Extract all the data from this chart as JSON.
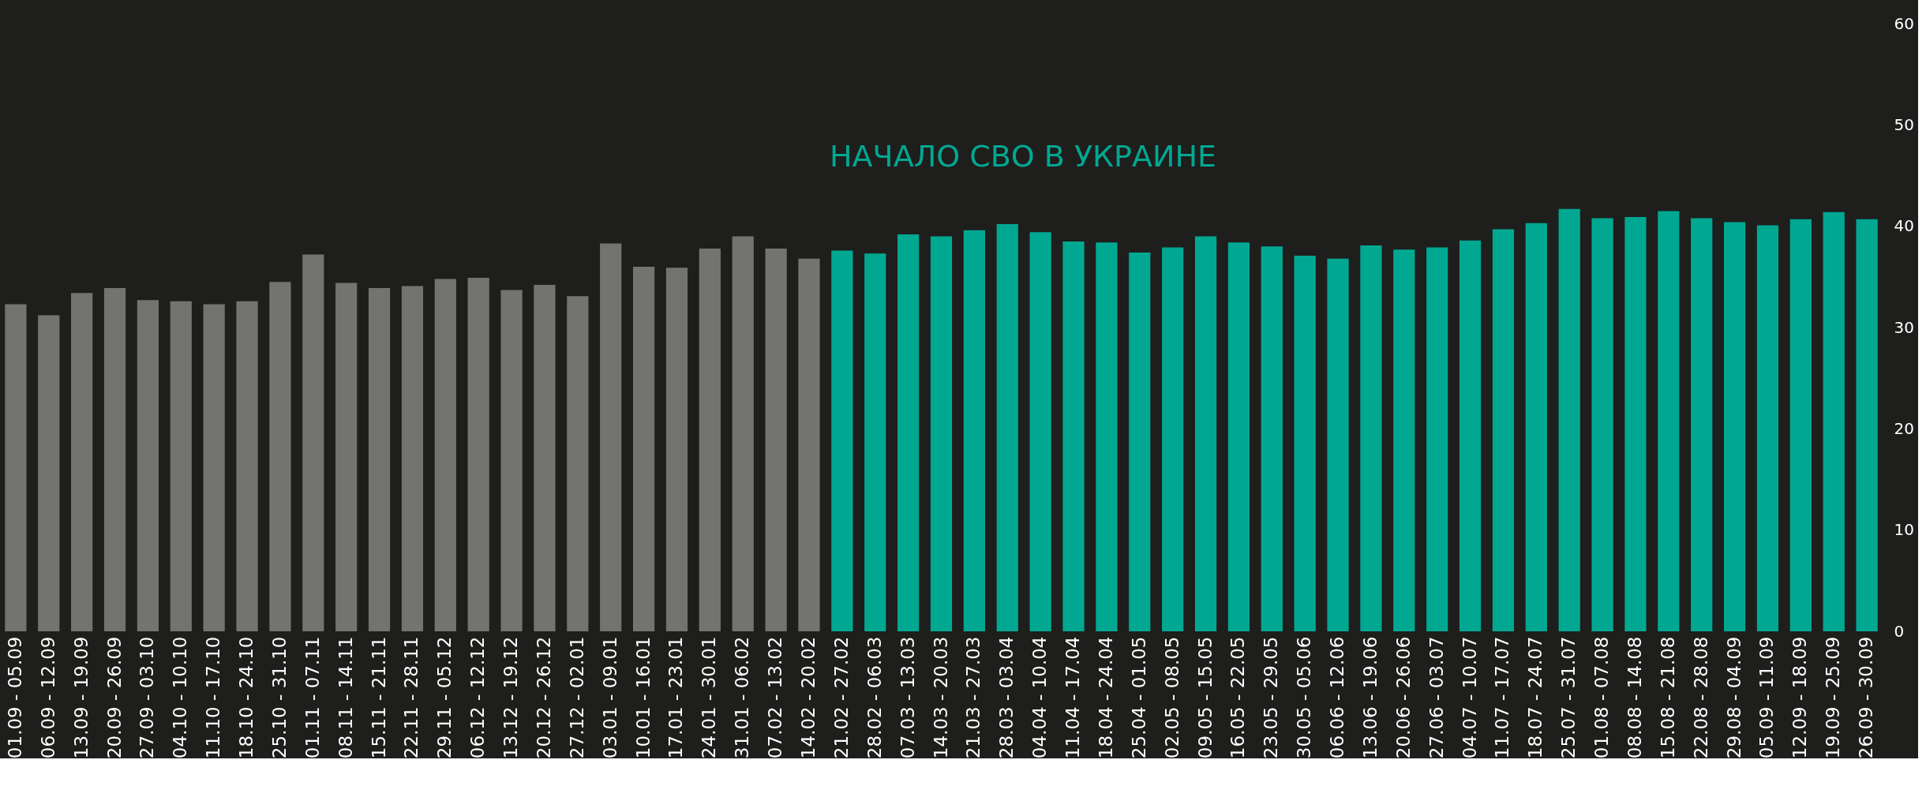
{
  "chart_data": {
    "type": "bar",
    "categories": [
      "01.09 - 05.09",
      "06.09 - 12.09",
      "13.09 - 19.09",
      "20.09 - 26.09",
      "27.09 - 03.10",
      "04.10 - 10.10",
      "11.10 - 17.10",
      "18.10 - 24.10",
      "25.10 - 31.10",
      "01.11 - 07.11",
      "08.11 - 14.11",
      "15.11 - 21.11",
      "22.11 - 28.11",
      "29.11 - 05.12",
      "06.12 - 12.12",
      "13.12 - 19.12",
      "20.12 - 26.12",
      "27.12 - 02.01",
      "03.01 - 09.01",
      "10.01 - 16.01",
      "17.01 - 23.01",
      "24.01 - 30.01",
      "31.01 - 06.02",
      "07.02 - 13.02",
      "14.02 - 20.02",
      "21.02 - 27.02",
      "28.02 - 06.03",
      "07.03 - 13.03",
      "14.03 - 20.03",
      "21.03 - 27.03",
      "28.03 - 03.04",
      "04.04 - 10.04",
      "11.04 - 17.04",
      "18.04 - 24.04",
      "25.04 - 01.05",
      "02.05 - 08.05",
      "09.05 - 15.05",
      "16.05 - 22.05",
      "23.05 - 29.05",
      "30.05 - 05.06",
      "06.06 - 12.06",
      "13.06 - 19.06",
      "20.06 - 26.06",
      "27.06 - 03.07",
      "04.07 - 10.07",
      "11.07 - 17.07",
      "18.07 - 24.07",
      "25.07 - 31.07",
      "01.08 - 07.08",
      "08.08 - 14.08",
      "15.08 - 21.08",
      "22.08 - 28.08",
      "29.08 - 04.09",
      "05.09 - 11.09",
      "12.09 - 18.09",
      "19.09 - 25.09",
      "26.09 - 30.09"
    ],
    "values": [
      32.3,
      31.2,
      33.4,
      33.9,
      32.7,
      32.6,
      32.3,
      32.6,
      34.5,
      37.2,
      34.4,
      33.9,
      34.1,
      34.8,
      34.9,
      33.7,
      34.2,
      33.1,
      38.3,
      36.0,
      35.9,
      37.8,
      39.0,
      37.8,
      36.8,
      37.6,
      37.3,
      39.2,
      39.0,
      39.6,
      40.2,
      39.4,
      38.5,
      38.4,
      37.4,
      37.9,
      39.0,
      38.4,
      38.0,
      37.1,
      36.8,
      38.1,
      37.7,
      37.9,
      38.6,
      39.7,
      40.3,
      41.7,
      40.8,
      40.9,
      41.5,
      40.8,
      40.4,
      40.1,
      40.7,
      41.4,
      40.7
    ],
    "colors": [
      "#737371",
      "#737371",
      "#737371",
      "#737371",
      "#737371",
      "#737371",
      "#737371",
      "#737371",
      "#737371",
      "#737371",
      "#737371",
      "#737371",
      "#737371",
      "#737371",
      "#737371",
      "#737371",
      "#737371",
      "#737371",
      "#737371",
      "#737371",
      "#737371",
      "#737371",
      "#737371",
      "#737371",
      "#737371",
      "#00a892",
      "#00a892",
      "#00a892",
      "#00a892",
      "#00a892",
      "#00a892",
      "#00a892",
      "#00a892",
      "#00a892",
      "#00a892",
      "#00a892",
      "#00a892",
      "#00a892",
      "#00a892",
      "#00a892",
      "#00a892",
      "#00a892",
      "#00a892",
      "#00a892",
      "#00a892",
      "#00a892",
      "#00a892",
      "#00a892",
      "#00a892",
      "#00a892",
      "#00a892",
      "#00a892",
      "#00a892",
      "#00a892",
      "#00a892",
      "#00a892",
      "#00a892"
    ],
    "ylim": [
      0,
      60
    ],
    "yticks": [
      0,
      10,
      20,
      30,
      40,
      50,
      60
    ],
    "grid": false,
    "annotations": [
      "НАЧАЛО СВО В УКРАИНЕ"
    ]
  }
}
